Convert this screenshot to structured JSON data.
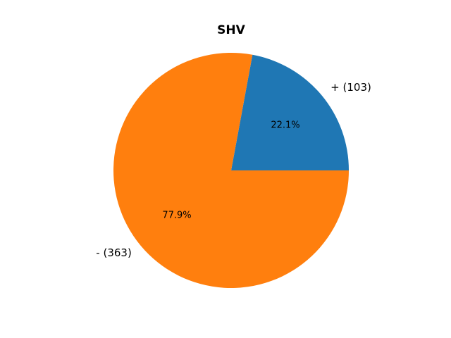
{
  "chart_data": {
    "type": "pie",
    "title": "SHV",
    "categories": [
      "+ (103)",
      "- (363)"
    ],
    "values": [
      22.1,
      77.9
    ],
    "value_labels": [
      "22.1%",
      "77.9%"
    ],
    "colors": [
      "#1f77b4",
      "#ff7f0e"
    ]
  }
}
